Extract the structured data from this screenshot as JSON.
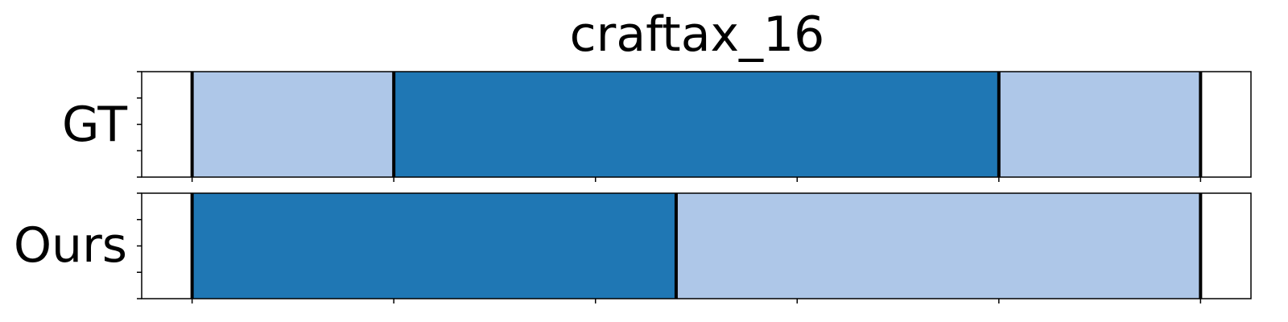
{
  "chart_data": {
    "type": "segmentation_timeline",
    "title": "craftax_16",
    "xlim": [
      0,
      22
    ],
    "colors": {
      "light": "#aec7e8",
      "dark": "#1f77b4",
      "boundary": "#000000",
      "frame": "#000000"
    },
    "rows": [
      {
        "label": "GT",
        "segments": [
          {
            "start": 1,
            "end": 5,
            "color": "light"
          },
          {
            "start": 5,
            "end": 17,
            "color": "dark"
          },
          {
            "start": 17,
            "end": 21,
            "color": "light"
          }
        ]
      },
      {
        "label": "Ours",
        "segments": [
          {
            "start": 1,
            "end": 10.6,
            "color": "dark"
          },
          {
            "start": 10.6,
            "end": 21,
            "color": "light"
          }
        ]
      }
    ],
    "x_ticks": [
      1,
      5,
      9,
      13,
      17,
      21
    ],
    "y_tick_count": 5
  }
}
